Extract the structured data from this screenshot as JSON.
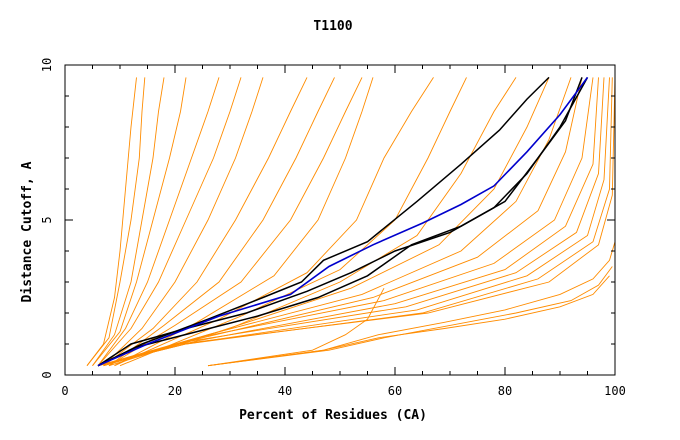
{
  "chart_data": {
    "type": "line",
    "title": "T1100",
    "xlabel": "Percent of Residues (CA)",
    "ylabel": "Distance Cutoff, A",
    "xlim": [
      0,
      100
    ],
    "ylim": [
      0,
      10
    ],
    "x_ticks": [
      "0",
      "20",
      "40",
      "60",
      "80",
      "100"
    ],
    "y_ticks": [
      "0",
      "5",
      "10"
    ],
    "grid": false,
    "colors": {
      "background_models": "#ff8c00",
      "highlight": "#0000cc",
      "reference": "#000000"
    },
    "background_series": [
      {
        "x": [
          4,
          7,
          9,
          10,
          11,
          12,
          13
        ],
        "y": [
          0.3,
          1.0,
          2.5,
          4.0,
          6.0,
          8.0,
          9.6
        ]
      },
      {
        "x": [
          4,
          8,
          10,
          12,
          13.5,
          14,
          14.5
        ],
        "y": [
          0.3,
          1.2,
          3.0,
          5.0,
          7.0,
          8.5,
          9.6
        ]
      },
      {
        "x": [
          5,
          9,
          12,
          14,
          16,
          17,
          18
        ],
        "y": [
          0.3,
          1.3,
          3.0,
          5.0,
          7.0,
          8.5,
          9.6
        ]
      },
      {
        "x": [
          5,
          10,
          13,
          16,
          19,
          21,
          22
        ],
        "y": [
          0.3,
          1.4,
          3.0,
          5.0,
          7.0,
          8.5,
          9.6
        ]
      },
      {
        "x": [
          6,
          11,
          15,
          19,
          23,
          26,
          28
        ],
        "y": [
          0.3,
          1.5,
          3.0,
          5.0,
          7.0,
          8.5,
          9.6
        ]
      },
      {
        "x": [
          6,
          12,
          17,
          22,
          27,
          30,
          32
        ],
        "y": [
          0.3,
          1.5,
          3.0,
          5.0,
          7.0,
          8.5,
          9.6
        ]
      },
      {
        "x": [
          7,
          14,
          20,
          26,
          31,
          34,
          36
        ],
        "y": [
          0.3,
          1.5,
          3.0,
          5.0,
          7.0,
          8.5,
          9.6
        ]
      },
      {
        "x": [
          7,
          16,
          24,
          31,
          37,
          41,
          44
        ],
        "y": [
          0.3,
          1.5,
          3.0,
          5.0,
          7.0,
          8.5,
          9.6
        ]
      },
      {
        "x": [
          8,
          18,
          28,
          36,
          42,
          46,
          49
        ],
        "y": [
          0.3,
          1.6,
          3.0,
          5.0,
          7.0,
          8.5,
          9.6
        ]
      },
      {
        "x": [
          8,
          20,
          32,
          41,
          47,
          51,
          54
        ],
        "y": [
          0.3,
          1.6,
          3.0,
          5.0,
          7.0,
          8.5,
          9.6
        ]
      },
      {
        "x": [
          9,
          24,
          38,
          46,
          51,
          54,
          56
        ],
        "y": [
          0.3,
          1.7,
          3.2,
          5.0,
          7.0,
          8.5,
          9.6
        ]
      },
      {
        "x": [
          9,
          28,
          44,
          53,
          58,
          63,
          67
        ],
        "y": [
          0.3,
          1.8,
          3.3,
          5.0,
          7.0,
          8.5,
          9.6
        ]
      },
      {
        "x": [
          10,
          32,
          50,
          60,
          66,
          70,
          73
        ],
        "y": [
          0.3,
          1.9,
          3.4,
          5.0,
          7.0,
          8.5,
          9.6
        ]
      },
      {
        "x": [
          8,
          30,
          50,
          64,
          72,
          78,
          82
        ],
        "y": [
          0.3,
          1.5,
          3.0,
          4.5,
          6.5,
          8.5,
          9.6
        ]
      },
      {
        "x": [
          7,
          28,
          52,
          68,
          78,
          84,
          88
        ],
        "y": [
          0.3,
          1.4,
          2.8,
          4.2,
          6.0,
          8.0,
          9.6
        ]
      },
      {
        "x": [
          7,
          26,
          54,
          72,
          82,
          88,
          92
        ],
        "y": [
          0.3,
          1.3,
          2.6,
          4.0,
          5.6,
          7.6,
          9.6
        ]
      },
      {
        "x": [
          7,
          25,
          56,
          75,
          86,
          91,
          94
        ],
        "y": [
          0.3,
          1.2,
          2.5,
          3.8,
          5.3,
          7.2,
          9.6
        ]
      },
      {
        "x": [
          6,
          24,
          58,
          78,
          89,
          94,
          96
        ],
        "y": [
          0.3,
          1.2,
          2.4,
          3.6,
          5.0,
          7.0,
          9.6
        ]
      },
      {
        "x": [
          6,
          24,
          60,
          80,
          91,
          96,
          97
        ],
        "y": [
          0.3,
          1.1,
          2.3,
          3.4,
          4.8,
          6.8,
          9.6
        ]
      },
      {
        "x": [
          6,
          23,
          62,
          82,
          93,
          97,
          98
        ],
        "y": [
          0.3,
          1.1,
          2.2,
          3.3,
          4.6,
          6.5,
          9.6
        ]
      },
      {
        "x": [
          6,
          22,
          64,
          84,
          95,
          98,
          99
        ],
        "y": [
          0.3,
          1.0,
          2.1,
          3.2,
          4.5,
          6.3,
          9.6
        ]
      },
      {
        "x": [
          6,
          22,
          65,
          86,
          96,
          99,
          99.5
        ],
        "y": [
          0.3,
          1.0,
          2.0,
          3.1,
          4.3,
          6.0,
          9.6
        ]
      },
      {
        "x": [
          6,
          21,
          66,
          88,
          97,
          99.5,
          100
        ],
        "y": [
          0.3,
          1.0,
          2.0,
          3.0,
          4.2,
          5.8,
          9.6
        ]
      },
      {
        "x": [
          26,
          47,
          57,
          69,
          80,
          90,
          96,
          99,
          100
        ],
        "y": [
          0.3,
          0.8,
          1.3,
          1.7,
          2.1,
          2.6,
          3.1,
          3.7,
          4.3
        ]
      },
      {
        "x": [
          26,
          47,
          57,
          69,
          80,
          90,
          96,
          99
        ],
        "y": [
          0.3,
          0.8,
          1.2,
          1.5,
          1.8,
          2.2,
          2.6,
          3.2
        ]
      },
      {
        "x": [
          26,
          48,
          58,
          70,
          82,
          92,
          97,
          99.5
        ],
        "y": [
          0.3,
          0.8,
          1.2,
          1.6,
          2.0,
          2.4,
          2.9,
          3.5
        ]
      },
      {
        "x": [
          26,
          45,
          51,
          55,
          58
        ],
        "y": [
          0.3,
          0.8,
          1.3,
          1.8,
          2.8
        ]
      },
      {
        "x": [
          100,
          100
        ],
        "y": [
          0.3,
          9.6
        ]
      }
    ],
    "reference_series": [
      {
        "x": [
          6,
          12,
          22,
          33,
          44,
          52,
          60,
          70,
          78,
          84,
          90,
          95
        ],
        "y": [
          0.3,
          1.0,
          1.5,
          2.0,
          2.7,
          3.3,
          4.0,
          4.6,
          5.4,
          6.5,
          8.0,
          9.6
        ]
      },
      {
        "x": [
          6,
          13,
          24,
          35,
          46,
          55,
          63,
          72,
          80,
          86,
          91,
          94
        ],
        "y": [
          0.3,
          0.9,
          1.4,
          1.9,
          2.5,
          3.2,
          4.2,
          4.8,
          5.6,
          7.0,
          8.2,
          9.6
        ]
      },
      {
        "x": [
          6,
          14,
          26,
          36,
          43,
          47,
          55,
          64,
          72,
          79,
          84,
          88
        ],
        "y": [
          0.3,
          1.0,
          1.8,
          2.5,
          3.0,
          3.7,
          4.3,
          5.6,
          6.8,
          7.9,
          8.9,
          9.6
        ]
      }
    ],
    "highlight_series": [
      {
        "x": [
          6,
          15,
          28,
          41,
          48,
          56,
          65,
          72,
          78,
          84,
          90,
          95
        ],
        "y": [
          0.3,
          1.0,
          1.9,
          2.6,
          3.5,
          4.2,
          4.9,
          5.5,
          6.1,
          7.2,
          8.4,
          9.6
        ]
      }
    ]
  }
}
